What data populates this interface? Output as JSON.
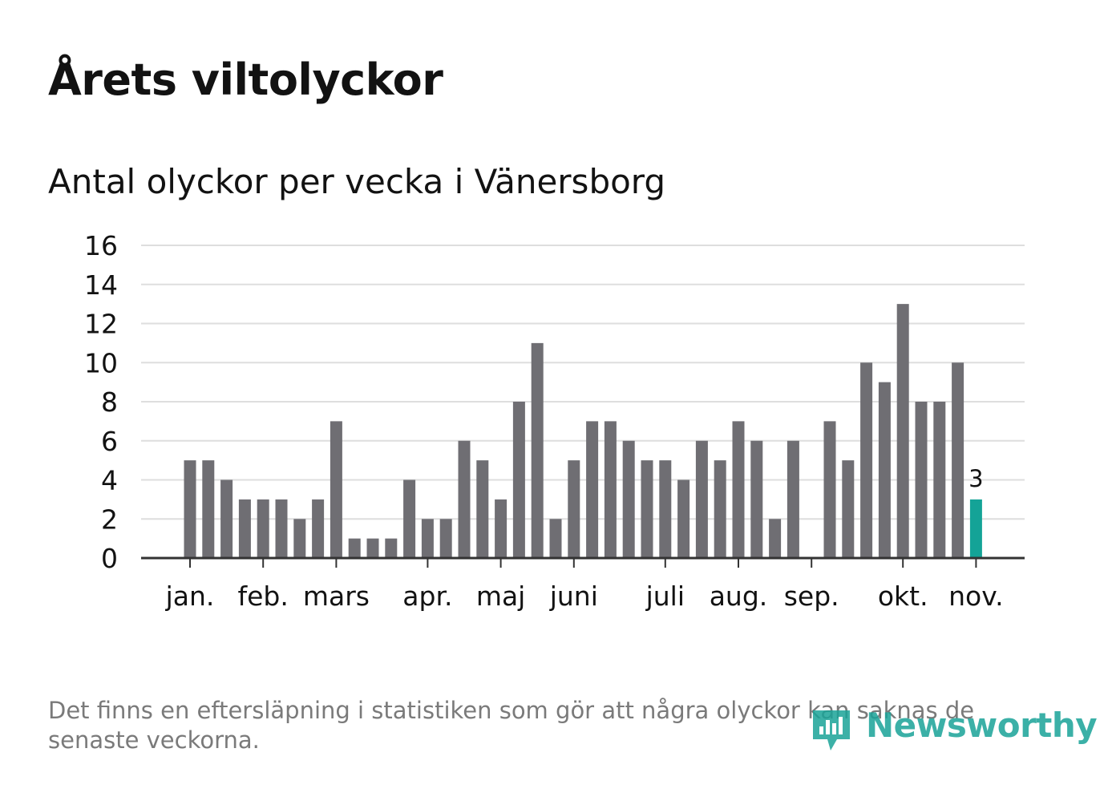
{
  "title": "Årets viltolyckor",
  "subtitle": "Antal olyckor per vecka i Vänersborg",
  "note": "Det finns en eftersläpning i statistiken som gör att några olyckor kan saknas de senaste veckorna.",
  "logo": {
    "text": "Newsworthy",
    "icon": "newsworthy-logo-icon"
  },
  "colors": {
    "bar": "#6f6e73",
    "highlight": "#14a397",
    "grid": "#dedede",
    "axis": "#333333",
    "text": "#121212"
  },
  "chart_data": {
    "type": "bar",
    "title": "Antal olyckor per vecka i Vänersborg",
    "xlabel": "",
    "ylabel": "",
    "ylim": [
      0,
      16
    ],
    "yticks": [
      "0",
      "2",
      "4",
      "6",
      "8",
      "10",
      "12",
      "14",
      "16"
    ],
    "grid": true,
    "x": [
      1,
      2,
      3,
      4,
      5,
      6,
      7,
      8,
      9,
      10,
      11,
      12,
      13,
      14,
      15,
      16,
      17,
      18,
      19,
      20,
      21,
      22,
      23,
      24,
      25,
      26,
      27,
      28,
      29,
      30,
      31,
      32,
      33,
      34,
      35,
      36,
      37,
      38,
      39,
      40,
      41,
      42,
      43,
      44
    ],
    "values": [
      5,
      5,
      4,
      3,
      3,
      3,
      2,
      3,
      7,
      1,
      1,
      1,
      4,
      2,
      2,
      6,
      5,
      3,
      8,
      11,
      2,
      5,
      7,
      7,
      6,
      5,
      5,
      4,
      6,
      5,
      7,
      6,
      2,
      6,
      0,
      7,
      5,
      10,
      9,
      13,
      8,
      8,
      10,
      3
    ],
    "highlight_index": 43,
    "highlight_label": "3",
    "months": [
      {
        "label": "jan.",
        "week": 1
      },
      {
        "label": "feb.",
        "week": 5
      },
      {
        "label": "mars",
        "week": 9
      },
      {
        "label": "apr.",
        "week": 14
      },
      {
        "label": "maj",
        "week": 18
      },
      {
        "label": "juni",
        "week": 22
      },
      {
        "label": "juli",
        "week": 27
      },
      {
        "label": "aug.",
        "week": 31
      },
      {
        "label": "sep.",
        "week": 35
      },
      {
        "label": "okt.",
        "week": 40
      },
      {
        "label": "nov.",
        "week": 44
      }
    ]
  }
}
